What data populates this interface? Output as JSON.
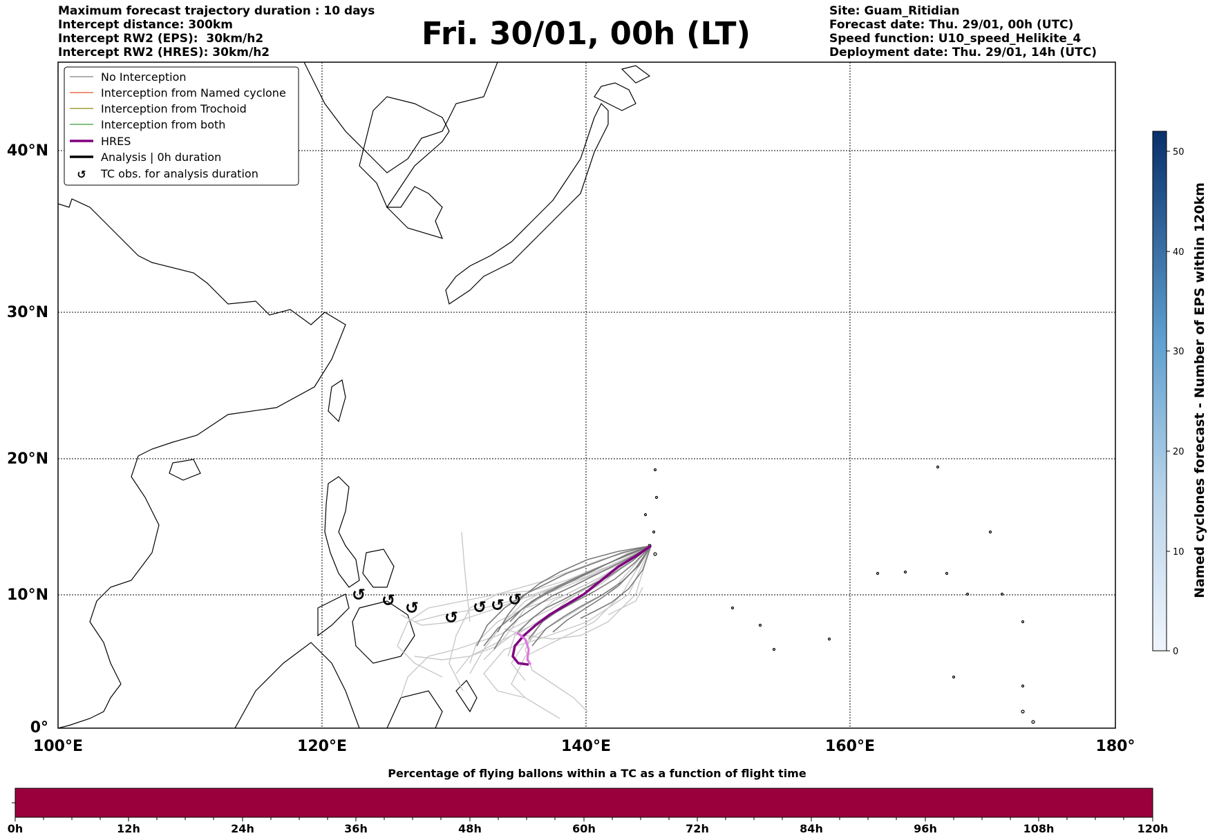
{
  "header": {
    "left": [
      "Maximum forecast trajectory duration : 10 days",
      "Intercept distance: 300km",
      "Intercept RW2 (EPS):  30km/h2",
      "Intercept RW2 (HRES): 30km/h2"
    ],
    "title": "Fri. 30/01, 00h (LT)",
    "right": [
      "Site: Guam_Ritidian",
      "Forecast date: Thu. 29/01, 00h (UTC)",
      "Speed function: U10_speed_Helikite_4",
      "Deployment date: Thu. 29/01, 14h (UTC)"
    ]
  },
  "map": {
    "lat_labels": [
      "40°N",
      "30°N",
      "20°N",
      "10°N",
      "0°"
    ],
    "lon_labels": [
      "100°E",
      "120°E",
      "140°E",
      "160°E",
      "180°"
    ]
  },
  "legend": {
    "items": [
      {
        "label": "No Interception",
        "color": "#808080"
      },
      {
        "label": "Interception from Named cyclone",
        "color": "#e8502a"
      },
      {
        "label": "Interception from Trochoid",
        "color": "#8a8a10"
      },
      {
        "label": "Interception from both",
        "color": "#3a9a3a"
      },
      {
        "label": "HRES",
        "color": "#800080"
      },
      {
        "label": "Analysis | 0h duration",
        "color": "#000000"
      },
      {
        "label": "TC obs. for analysis duration",
        "icon": "cyclone-icon"
      }
    ]
  },
  "colorbar": {
    "title": "Named cyclones forecast - Number of EPS within 120km",
    "ticks": [
      "0",
      "10",
      "20",
      "30",
      "40",
      "50"
    ]
  },
  "percentage_bar": {
    "title": "Percentage of flying ballons within a TC as a function of flight time",
    "color": "#9a003c",
    "ticks": [
      "0h",
      "12h",
      "24h",
      "36h",
      "48h",
      "60h",
      "72h",
      "84h",
      "96h",
      "108h",
      "120h"
    ]
  },
  "tc_symbol": "↺"
}
